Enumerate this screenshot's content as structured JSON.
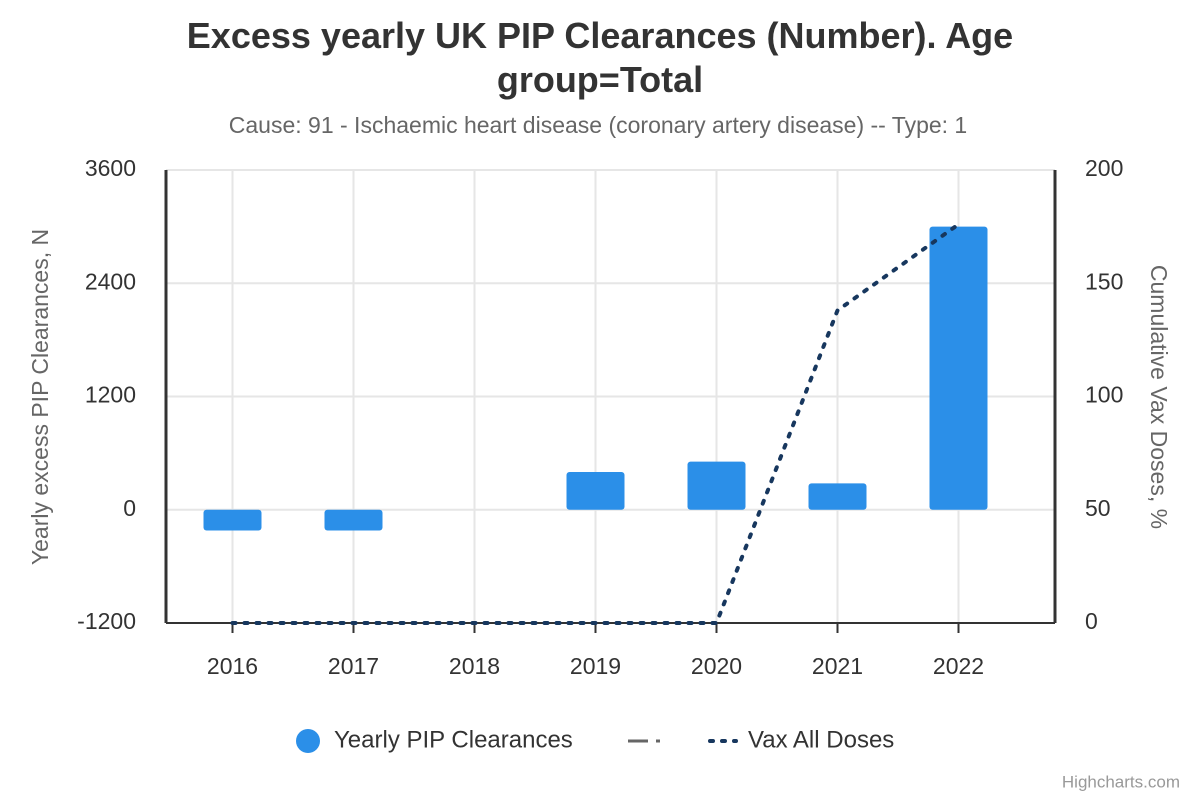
{
  "chart_data": {
    "type": "bar",
    "title": "Excess yearly UK PIP Clearances (Number). Age group=Total",
    "subtitle": "Cause: 91 - Ischaemic heart disease (coronary artery disease) -- Type: 1",
    "y_label": "Yearly excess PIP Clearances, N",
    "y2_label": "Cumulative Vax Doses, %",
    "categories": [
      "2016",
      "2017",
      "2018",
      "2019",
      "2020",
      "2021",
      "2022"
    ],
    "series": [
      {
        "name": "Yearly PIP Clearances",
        "type": "bar",
        "color": "#2b8fe8",
        "values": [
          -220,
          -220,
          0,
          400,
          510,
          280,
          3000
        ]
      },
      {
        "name": "Vax All Doses",
        "type": "line",
        "axis": "y2",
        "color": "#17375e",
        "values": [
          0,
          0,
          0,
          0,
          0,
          138,
          176
        ]
      }
    ],
    "ylim": [
      -1200,
      3600
    ],
    "yticks": [
      -1200,
      0,
      1200,
      2400,
      3600
    ],
    "y2lim": [
      0,
      200
    ],
    "y2ticks": [
      0,
      50,
      100,
      150,
      200
    ],
    "grid": true,
    "credit": "Highcharts.com"
  }
}
